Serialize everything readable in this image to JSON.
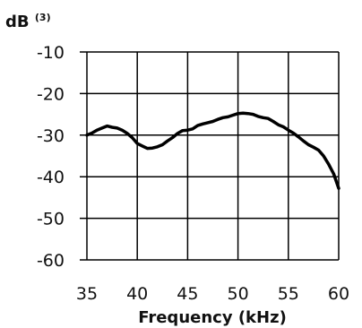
{
  "chart_data": {
    "type": "line",
    "title": "",
    "xlabel": "Frequency (kHz)",
    "ylabel": "dB",
    "ylabel_superscript": "(3)",
    "xlim": [
      35,
      60
    ],
    "ylim": [
      -60,
      -10
    ],
    "x_ticks": [
      35,
      40,
      45,
      50,
      55,
      60
    ],
    "y_ticks": [
      -10,
      -20,
      -30,
      -40,
      -50,
      -60
    ],
    "x_tick_labels": [
      "35",
      "40",
      "45",
      "50",
      "55",
      "60"
    ],
    "y_tick_labels": [
      "-10",
      "-20",
      "-30",
      "-40",
      "-50",
      "-60"
    ],
    "grid": true,
    "legend": "none",
    "line_color": "#000000",
    "series": [
      {
        "x": [
          35,
          35.5,
          36,
          36.5,
          37,
          37.5,
          38,
          38.5,
          39,
          39.5,
          40,
          40.5,
          41,
          41.5,
          42,
          42.5,
          43,
          43.5,
          44,
          44.5,
          45,
          45.5,
          46,
          46.5,
          47,
          47.5,
          48,
          48.5,
          49,
          49.5,
          50,
          50.5,
          51,
          51.5,
          52,
          52.5,
          53,
          53.5,
          54,
          54.5,
          55,
          55.5,
          56,
          56.5,
          57,
          57.5,
          58,
          58.5,
          59,
          59.5,
          60
        ],
        "y": [
          -30,
          -29.5,
          -28.8,
          -28.3,
          -27.8,
          -28.1,
          -28.3,
          -28.8,
          -29.6,
          -30.6,
          -32,
          -32.6,
          -33.2,
          -33.1,
          -32.8,
          -32.3,
          -31.4,
          -30.6,
          -29.6,
          -28.9,
          -28.8,
          -28.5,
          -27.7,
          -27.3,
          -27,
          -26.7,
          -26.2,
          -25.8,
          -25.6,
          -25.2,
          -24.8,
          -24.7,
          -24.8,
          -25,
          -25.5,
          -25.8,
          -26,
          -26.7,
          -27.5,
          -28,
          -28.8,
          -29.5,
          -30.4,
          -31.4,
          -32.3,
          -32.9,
          -33.6,
          -35,
          -37,
          -39.3,
          -42.8
        ]
      }
    ]
  }
}
